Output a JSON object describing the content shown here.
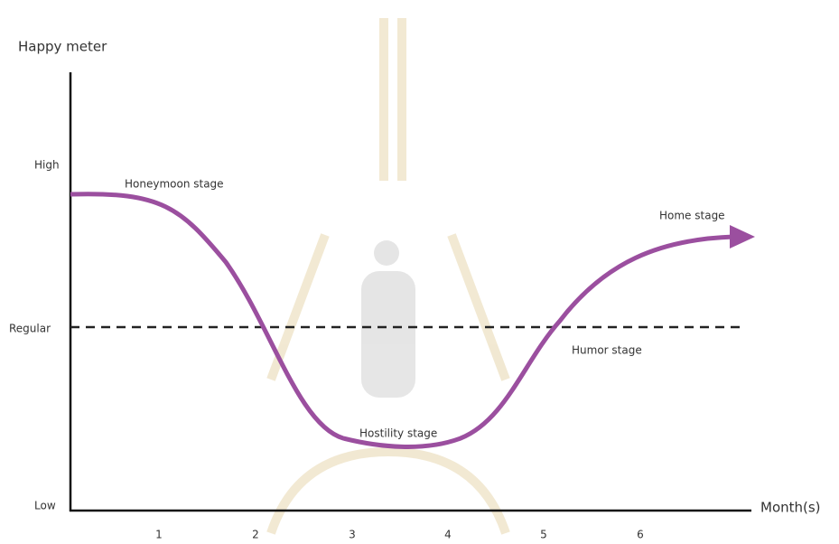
{
  "y_axis": {
    "title": "Happy meter",
    "levels": [
      "High",
      "Regular",
      "Low"
    ]
  },
  "x_axis": {
    "title": "Month(s)",
    "labels": [
      "1",
      "2",
      "3",
      "4",
      "5",
      "6"
    ]
  },
  "stages": [
    "Honeymoon stage",
    "Hostility stage",
    "Humor stage",
    "Home stage"
  ]
}
